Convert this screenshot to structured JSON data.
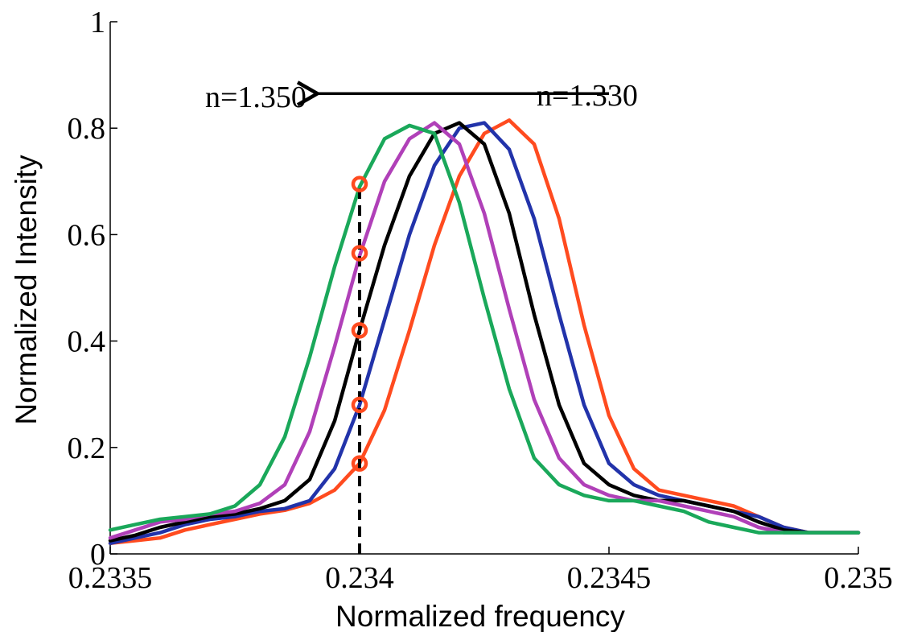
{
  "chart_data": {
    "type": "line",
    "title": "",
    "xlabel": "Normalized frequency",
    "ylabel": "Normalized Intensity",
    "xlim": [
      0.2335,
      0.235
    ],
    "ylim": [
      0,
      1
    ],
    "xticks": [
      0.2335,
      0.234,
      0.2345,
      0.235
    ],
    "xtick_labels": [
      "0.2335",
      "0.234",
      "0.2345",
      "0.235"
    ],
    "yticks": [
      0,
      0.2,
      0.4,
      0.6,
      0.8,
      1
    ],
    "ytick_labels": [
      "0",
      "0.2",
      "0.4",
      "0.6",
      "0.8",
      "1"
    ],
    "grid": false,
    "series": [
      {
        "color": "#ff4b1f",
        "x": [
          0.2335,
          0.23355,
          0.2336,
          0.23365,
          0.2337,
          0.23375,
          0.2338,
          0.23385,
          0.2339,
          0.23395,
          0.234,
          0.23405,
          0.2341,
          0.23415,
          0.2342,
          0.23425,
          0.2343,
          0.23435,
          0.2344,
          0.23445,
          0.2345,
          0.23455,
          0.2346,
          0.23465,
          0.2347,
          0.23475,
          0.2348,
          0.23485,
          0.2349,
          0.23495,
          0.235
        ],
        "y": [
          0.02,
          0.025,
          0.03,
          0.045,
          0.055,
          0.065,
          0.075,
          0.082,
          0.095,
          0.12,
          0.17,
          0.27,
          0.42,
          0.58,
          0.71,
          0.79,
          0.815,
          0.77,
          0.63,
          0.43,
          0.26,
          0.16,
          0.12,
          0.11,
          0.1,
          0.09,
          0.07,
          0.05,
          0.04,
          0.04,
          0.04
        ]
      },
      {
        "color": "#2233aa",
        "x": [
          0.2335,
          0.23355,
          0.2336,
          0.23365,
          0.2337,
          0.23375,
          0.2338,
          0.23385,
          0.2339,
          0.23395,
          0.234,
          0.23405,
          0.2341,
          0.23415,
          0.2342,
          0.23425,
          0.2343,
          0.23435,
          0.2344,
          0.23445,
          0.2345,
          0.23455,
          0.2346,
          0.23465,
          0.2347,
          0.23475,
          0.2348,
          0.23485,
          0.2349,
          0.23495,
          0.235
        ],
        "y": [
          0.02,
          0.03,
          0.04,
          0.055,
          0.065,
          0.07,
          0.08,
          0.085,
          0.1,
          0.16,
          0.28,
          0.44,
          0.6,
          0.73,
          0.8,
          0.81,
          0.76,
          0.63,
          0.45,
          0.28,
          0.17,
          0.13,
          0.11,
          0.1,
          0.09,
          0.08,
          0.07,
          0.05,
          0.04,
          0.04,
          0.04
        ]
      },
      {
        "color": "#000000",
        "x": [
          0.2335,
          0.23355,
          0.2336,
          0.23365,
          0.2337,
          0.23375,
          0.2338,
          0.23385,
          0.2339,
          0.23395,
          0.234,
          0.23405,
          0.2341,
          0.23415,
          0.2342,
          0.23425,
          0.2343,
          0.23435,
          0.2344,
          0.23445,
          0.2345,
          0.23455,
          0.2346,
          0.23465,
          0.2347,
          0.23475,
          0.2348,
          0.23485,
          0.2349,
          0.23495,
          0.235
        ],
        "y": [
          0.025,
          0.035,
          0.05,
          0.06,
          0.07,
          0.075,
          0.085,
          0.1,
          0.14,
          0.25,
          0.42,
          0.58,
          0.71,
          0.79,
          0.81,
          0.77,
          0.64,
          0.45,
          0.28,
          0.17,
          0.13,
          0.11,
          0.1,
          0.1,
          0.09,
          0.08,
          0.06,
          0.045,
          0.04,
          0.04,
          0.04
        ]
      },
      {
        "color": "#b040b8",
        "x": [
          0.2335,
          0.23355,
          0.2336,
          0.23365,
          0.2337,
          0.23375,
          0.2338,
          0.23385,
          0.2339,
          0.23395,
          0.234,
          0.23405,
          0.2341,
          0.23415,
          0.2342,
          0.23425,
          0.2343,
          0.23435,
          0.2344,
          0.23445,
          0.2345,
          0.23455,
          0.2346,
          0.23465,
          0.2347,
          0.23475,
          0.2348,
          0.23485,
          0.2349,
          0.23495,
          0.235
        ],
        "y": [
          0.03,
          0.045,
          0.06,
          0.065,
          0.075,
          0.08,
          0.095,
          0.13,
          0.23,
          0.39,
          0.56,
          0.7,
          0.78,
          0.81,
          0.77,
          0.64,
          0.46,
          0.29,
          0.18,
          0.13,
          0.11,
          0.1,
          0.1,
          0.09,
          0.08,
          0.07,
          0.05,
          0.04,
          0.04,
          0.04,
          0.04
        ]
      },
      {
        "color": "#1aa85a",
        "x": [
          0.2335,
          0.23355,
          0.2336,
          0.23365,
          0.2337,
          0.23375,
          0.2338,
          0.23385,
          0.2339,
          0.23395,
          0.234,
          0.23405,
          0.2341,
          0.23415,
          0.2342,
          0.23425,
          0.2343,
          0.23435,
          0.2344,
          0.23445,
          0.2345,
          0.23455,
          0.2346,
          0.23465,
          0.2347,
          0.23475,
          0.2348,
          0.23485,
          0.2349,
          0.23495,
          0.235
        ],
        "y": [
          0.045,
          0.055,
          0.065,
          0.07,
          0.075,
          0.09,
          0.13,
          0.22,
          0.37,
          0.54,
          0.69,
          0.78,
          0.805,
          0.79,
          0.66,
          0.48,
          0.31,
          0.18,
          0.13,
          0.11,
          0.1,
          0.1,
          0.09,
          0.08,
          0.06,
          0.05,
          0.04,
          0.04,
          0.04,
          0.04,
          0.04
        ]
      }
    ],
    "marker_points": {
      "color": "#ff4b1f",
      "x": [
        0.234,
        0.234,
        0.234,
        0.234,
        0.234
      ],
      "y": [
        0.695,
        0.565,
        0.42,
        0.28,
        0.17
      ]
    },
    "vertical_dashed_line": {
      "x": 0.234,
      "y_from": 0,
      "y_to": 0.695,
      "color": "#000000"
    },
    "annotations": {
      "left_label": "n=1.350",
      "right_label": "n=1.330",
      "arrow": {
        "from_x": 0.2345,
        "to_x": 0.2339,
        "y": 0.865
      }
    }
  }
}
